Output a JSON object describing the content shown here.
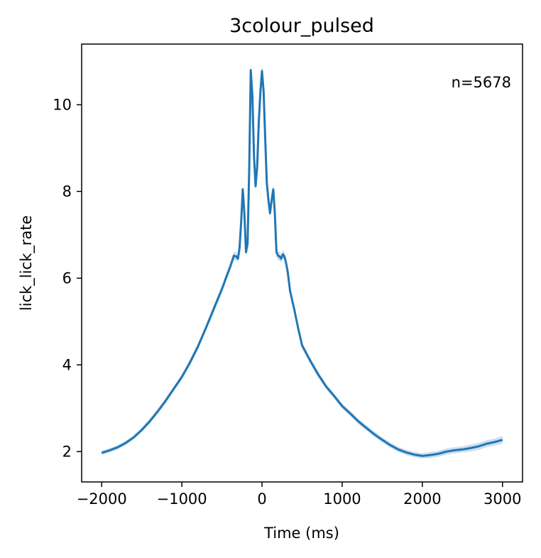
{
  "chart_data": {
    "type": "line",
    "title": "3colour_pulsed",
    "xlabel": "Time (ms)",
    "ylabel": "lick_lick_rate",
    "annotation": "n=5678",
    "xlim": [
      -2250,
      3250
    ],
    "ylim": [
      1.3,
      11.4
    ],
    "xticks": [
      -2000,
      -1000,
      0,
      1000,
      2000,
      3000
    ],
    "xtick_labels": [
      "−2000",
      "−1000",
      "0",
      "1000",
      "2000",
      "3000"
    ],
    "yticks": [
      2,
      4,
      6,
      8,
      10
    ],
    "ytick_labels": [
      "2",
      "4",
      "6",
      "8",
      "10"
    ],
    "grid": false,
    "series": [
      {
        "color": "#1f77b4",
        "band_color": "#aec7e8",
        "x": [
          -2000,
          -1900,
          -1800,
          -1700,
          -1600,
          -1500,
          -1400,
          -1300,
          -1200,
          -1100,
          -1000,
          -900,
          -800,
          -700,
          -600,
          -500,
          -450,
          -400,
          -350,
          -320,
          -300,
          -280,
          -260,
          -240,
          -220,
          -200,
          -180,
          -160,
          -140,
          -120,
          -100,
          -80,
          -60,
          -40,
          -20,
          0,
          20,
          40,
          60,
          80,
          100,
          120,
          140,
          160,
          180,
          200,
          220,
          240,
          260,
          280,
          300,
          320,
          350,
          400,
          450,
          500,
          600,
          700,
          800,
          900,
          1000,
          1100,
          1200,
          1300,
          1400,
          1500,
          1600,
          1700,
          1800,
          1900,
          2000,
          2100,
          2200,
          2300,
          2400,
          2500,
          2600,
          2700,
          2800,
          2900,
          3000
        ],
        "y": [
          1.97,
          2.03,
          2.1,
          2.2,
          2.33,
          2.5,
          2.7,
          2.93,
          3.18,
          3.45,
          3.72,
          4.05,
          4.42,
          4.85,
          5.3,
          5.75,
          6.0,
          6.25,
          6.52,
          6.5,
          6.45,
          6.7,
          7.3,
          8.05,
          7.5,
          6.6,
          6.8,
          8.5,
          10.8,
          10.2,
          8.8,
          8.12,
          8.6,
          9.6,
          10.3,
          10.78,
          10.3,
          9.2,
          8.2,
          7.8,
          7.5,
          7.8,
          8.05,
          7.5,
          6.6,
          6.52,
          6.5,
          6.45,
          6.55,
          6.5,
          6.35,
          6.15,
          5.7,
          5.3,
          4.85,
          4.45,
          4.1,
          3.78,
          3.5,
          3.28,
          3.05,
          2.88,
          2.7,
          2.55,
          2.4,
          2.27,
          2.15,
          2.05,
          1.98,
          1.93,
          1.9,
          1.92,
          1.95,
          2.0,
          2.03,
          2.05,
          2.08,
          2.12,
          2.18,
          2.22,
          2.27
        ],
        "band": [
          0.05,
          0.05,
          0.05,
          0.05,
          0.05,
          0.05,
          0.06,
          0.06,
          0.06,
          0.06,
          0.06,
          0.07,
          0.07,
          0.07,
          0.08,
          0.08,
          0.08,
          0.09,
          0.09,
          0.09,
          0.09,
          0.1,
          0.1,
          0.11,
          0.11,
          0.12,
          0.12,
          0.13,
          0.15,
          0.15,
          0.14,
          0.14,
          0.14,
          0.15,
          0.15,
          0.15,
          0.15,
          0.14,
          0.14,
          0.14,
          0.13,
          0.12,
          0.12,
          0.11,
          0.11,
          0.1,
          0.1,
          0.1,
          0.09,
          0.09,
          0.09,
          0.09,
          0.08,
          0.08,
          0.08,
          0.07,
          0.07,
          0.07,
          0.06,
          0.06,
          0.06,
          0.06,
          0.06,
          0.06,
          0.06,
          0.06,
          0.06,
          0.06,
          0.06,
          0.06,
          0.06,
          0.07,
          0.07,
          0.07,
          0.07,
          0.07,
          0.08,
          0.08,
          0.08,
          0.08,
          0.09
        ]
      }
    ]
  }
}
